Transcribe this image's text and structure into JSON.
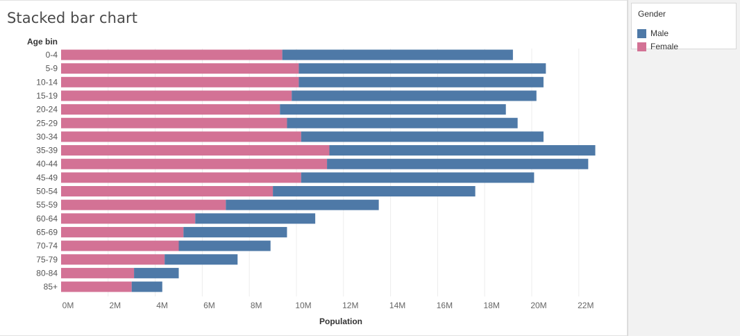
{
  "chart_data": {
    "type": "bar",
    "orientation": "horizontal",
    "stacked": true,
    "title": "Stacked bar chart",
    "xlabel": "Population",
    "ylabel": "Age bin",
    "categories": [
      "0-4",
      "5-9",
      "10-14",
      "15-19",
      "20-24",
      "25-29",
      "30-34",
      "35-39",
      "40-44",
      "45-49",
      "50-54",
      "55-59",
      "60-64",
      "65-69",
      "70-74",
      "75-79",
      "80-84",
      "85+"
    ],
    "series": [
      {
        "name": "Female",
        "color": "#d37295",
        "values": [
          9.4,
          10.1,
          10.1,
          9.8,
          9.3,
          9.6,
          10.2,
          11.4,
          11.3,
          10.2,
          9.0,
          7.0,
          5.7,
          5.2,
          5.0,
          4.4,
          3.1,
          3.0
        ]
      },
      {
        "name": "Male",
        "color": "#4e79a7",
        "values": [
          9.8,
          10.5,
          10.4,
          10.4,
          9.6,
          9.8,
          10.3,
          11.3,
          11.1,
          9.9,
          8.6,
          6.5,
          5.1,
          4.4,
          3.9,
          3.1,
          1.9,
          1.3
        ]
      }
    ],
    "value_unit": "millions",
    "xlim": [
      0,
      24
    ],
    "xticks": [
      "0M",
      "2M",
      "4M",
      "6M",
      "8M",
      "10M",
      "12M",
      "14M",
      "16M",
      "18M",
      "20M",
      "22M"
    ],
    "grid": "vertical",
    "legend_placement": "right"
  },
  "legend": {
    "title": "Gender",
    "items": [
      {
        "label": "Male",
        "color": "#4e79a7"
      },
      {
        "label": "Female",
        "color": "#d37295"
      }
    ]
  }
}
